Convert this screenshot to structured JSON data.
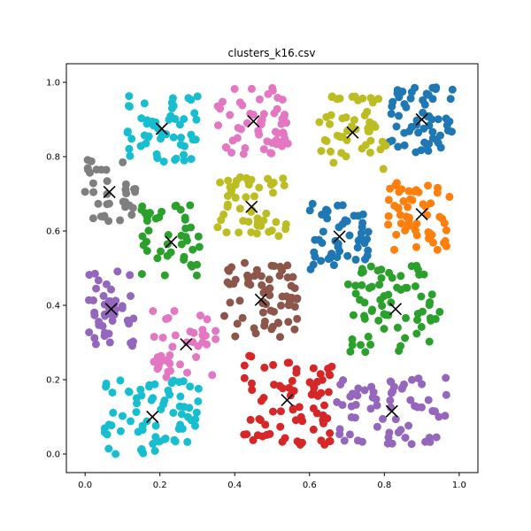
{
  "chart_data": {
    "type": "scatter",
    "title": "clusters_k16.csv",
    "xlabel": "",
    "ylabel": "",
    "xlim": [
      -0.05,
      1.05
    ],
    "ylim": [
      -0.05,
      1.05
    ],
    "x_ticks": [
      "0.0",
      "0.2",
      "0.4",
      "0.6",
      "0.8",
      "1.0"
    ],
    "y_ticks": [
      "0.0",
      "0.2",
      "0.4",
      "0.6",
      "0.8",
      "1.0"
    ],
    "grid": false,
    "legend": false,
    "clusters": [
      {
        "color": "#1f77b4",
        "centroid": [
          0.9,
          0.9
        ],
        "spread": [
          0.09,
          0.09
        ],
        "count": 60
      },
      {
        "color": "#ff7f0e",
        "centroid": [
          0.9,
          0.645
        ],
        "spread": [
          0.09,
          0.1
        ],
        "count": 55
      },
      {
        "color": "#2ca02c",
        "centroid": [
          0.83,
          0.39
        ],
        "spread": [
          0.13,
          0.12
        ],
        "count": 70
      },
      {
        "color": "#d62728",
        "centroid": [
          0.54,
          0.145
        ],
        "spread": [
          0.12,
          0.12
        ],
        "count": 75
      },
      {
        "color": "#9467bd",
        "centroid": [
          0.82,
          0.115
        ],
        "spread": [
          0.15,
          0.09
        ],
        "count": 65
      },
      {
        "color": "#8c564b",
        "centroid": [
          0.47,
          0.415
        ],
        "spread": [
          0.1,
          0.1
        ],
        "count": 65
      },
      {
        "color": "#e377c2",
        "centroid": [
          0.45,
          0.895
        ],
        "spread": [
          0.1,
          0.09
        ],
        "count": 55
      },
      {
        "color": "#7f7f7f",
        "centroid": [
          0.065,
          0.705
        ],
        "spread": [
          0.07,
          0.09
        ],
        "count": 35
      },
      {
        "color": "#bcbd22",
        "centroid": [
          0.715,
          0.865
        ],
        "spread": [
          0.09,
          0.1
        ],
        "count": 50
      },
      {
        "color": "#17becf",
        "centroid": [
          0.205,
          0.875
        ],
        "spread": [
          0.1,
          0.09
        ],
        "count": 55
      },
      {
        "color": "#1f77b4",
        "centroid": [
          0.68,
          0.585
        ],
        "spread": [
          0.08,
          0.09
        ],
        "count": 50
      },
      {
        "color": "#2ca02c",
        "centroid": [
          0.23,
          0.57
        ],
        "spread": [
          0.08,
          0.1
        ],
        "count": 45
      },
      {
        "color": "#bcbd22",
        "centroid": [
          0.445,
          0.665
        ],
        "spread": [
          0.1,
          0.08
        ],
        "count": 50
      },
      {
        "color": "#9467bd",
        "centroid": [
          0.07,
          0.39
        ],
        "spread": [
          0.06,
          0.12
        ],
        "count": 45
      },
      {
        "color": "#e377c2",
        "centroid": [
          0.27,
          0.295
        ],
        "spread": [
          0.09,
          0.09
        ],
        "count": 40
      },
      {
        "color": "#17becf",
        "centroid": [
          0.18,
          0.1
        ],
        "spread": [
          0.13,
          0.1
        ],
        "count": 70
      }
    ],
    "centroid_marker": "x",
    "centroid_color": "#000000"
  }
}
